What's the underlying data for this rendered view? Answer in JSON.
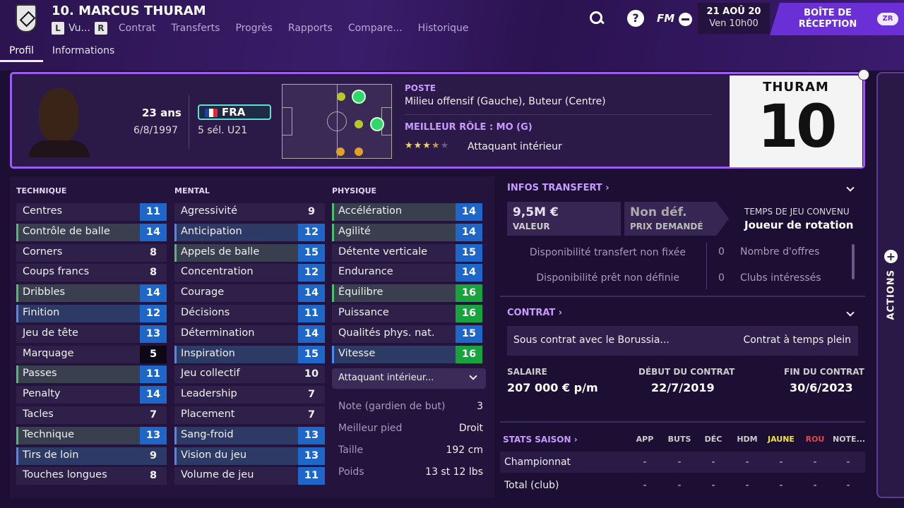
{
  "header": {
    "player_title": "10. MARCUS THURAM",
    "key_left": "L",
    "viewed": "Vu...",
    "key_right": "R",
    "nav": [
      "Contrat",
      "Transferts",
      "Progrès",
      "Rapports",
      "Compare...",
      "Historique"
    ],
    "help_glyph": "?",
    "fm_logo": "FM",
    "date": "21 AOÛ 20",
    "time": "Ven 10h00",
    "inbox": "BOÎTE DE RÉCEPTION",
    "inbox_key": "ZR"
  },
  "sub_tabs": [
    "Profil",
    "Informations"
  ],
  "card": {
    "age": "23 ans",
    "dob": "6/8/1997",
    "nation": "FRA",
    "caps": "5 sél. U21",
    "poste_label": "POSTE",
    "poste": "Milieu offensif (Gauche), Buteur (Centre)",
    "role_label": "MEILLEUR RÔLE : MO (G)",
    "role": "Attaquant intérieur",
    "stars": 3.5,
    "shirt_name": "THURAM",
    "shirt_number": "10"
  },
  "attributes": {
    "technique": {
      "title": "TECHNIQUE",
      "items": [
        {
          "name": "Centres",
          "value": "11"
        },
        {
          "name": "Contrôle de balle",
          "value": "14"
        },
        {
          "name": "Corners",
          "value": "8"
        },
        {
          "name": "Coups francs",
          "value": "8"
        },
        {
          "name": "Dribbles",
          "value": "14"
        },
        {
          "name": "Finition",
          "value": "12"
        },
        {
          "name": "Jeu de tête",
          "value": "13"
        },
        {
          "name": "Marquage",
          "value": "5"
        },
        {
          "name": "Passes",
          "value": "11"
        },
        {
          "name": "Penalty",
          "value": "14"
        },
        {
          "name": "Tacles",
          "value": "7"
        },
        {
          "name": "Technique",
          "value": "13"
        },
        {
          "name": "Tirs de loin",
          "value": "9"
        },
        {
          "name": "Touches longues",
          "value": "8"
        }
      ]
    },
    "mental": {
      "title": "MENTAL",
      "items": [
        {
          "name": "Agressivité",
          "value": "9"
        },
        {
          "name": "Anticipation",
          "value": "12"
        },
        {
          "name": "Appels de balle",
          "value": "15"
        },
        {
          "name": "Concentration",
          "value": "12"
        },
        {
          "name": "Courage",
          "value": "14"
        },
        {
          "name": "Décisions",
          "value": "11"
        },
        {
          "name": "Détermination",
          "value": "14"
        },
        {
          "name": "Inspiration",
          "value": "15"
        },
        {
          "name": "Jeu collectif",
          "value": "10"
        },
        {
          "name": "Leadership",
          "value": "7"
        },
        {
          "name": "Placement",
          "value": "7"
        },
        {
          "name": "Sang-froid",
          "value": "13"
        },
        {
          "name": "Vision du jeu",
          "value": "13"
        },
        {
          "name": "Volume de jeu",
          "value": "11"
        }
      ]
    },
    "physique": {
      "title": "PHYSIQUE",
      "items": [
        {
          "name": "Accélération",
          "value": "14"
        },
        {
          "name": "Agilité",
          "value": "14"
        },
        {
          "name": "Détente verticale",
          "value": "15"
        },
        {
          "name": "Endurance",
          "value": "14"
        },
        {
          "name": "Équilibre",
          "value": "16"
        },
        {
          "name": "Puissance",
          "value": "16"
        },
        {
          "name": "Qualités phys. nat.",
          "value": "15"
        },
        {
          "name": "Vitesse",
          "value": "16"
        }
      ]
    },
    "role_select": "Attaquant intérieur...",
    "info": [
      {
        "k": "Note (gardien de but)",
        "v": "3"
      },
      {
        "k": "Meilleur pied",
        "v": "Droit"
      },
      {
        "k": "Taille",
        "v": "192 cm"
      },
      {
        "k": "Poids",
        "v": "13 st 12 lbs"
      }
    ]
  },
  "transfer": {
    "title": "INFOS TRANSFERT",
    "value": "9,5M €",
    "value_label": "VALEUR",
    "asking": "Non déf.",
    "asking_label": "PRIX DEMANDÉ",
    "playtime_label": "TEMPS DE JEU CONVENU",
    "playtime": "Joueur de rotation",
    "transfer_avail": "Disponibilité transfert non fixée",
    "loan_avail": "Disponibilité prêt non définie",
    "offers_count": "0",
    "offers_label": "Nombre d'offres",
    "clubs_count": "0",
    "clubs_label": "Clubs intéressés"
  },
  "contract": {
    "title": "CONTRAT",
    "status": "Sous contrat avec le Borussia...",
    "type": "Contrat à temps plein",
    "salary_label": "SALAIRE",
    "salary": "207 000 € p/m",
    "start_label": "DÉBUT DU CONTRAT",
    "start": "22/7/2019",
    "end_label": "FIN DU CONTRAT",
    "end": "30/6/2023"
  },
  "stats": {
    "title": "STATS SAISON",
    "columns": [
      "APP",
      "BUTS",
      "DÉC",
      "HDM",
      "JAUNE",
      "ROU",
      "NOTE..."
    ],
    "rows": [
      {
        "label": "Championnat",
        "cells": [
          "-",
          "-",
          "-",
          "-",
          "-",
          "-",
          "-"
        ]
      },
      {
        "label": "Total (club)",
        "cells": [
          "-",
          "-",
          "-",
          "-",
          "-",
          "-",
          "-"
        ]
      }
    ]
  },
  "actions": {
    "plus": "+",
    "label": "ACTIONS"
  },
  "colors": {
    "accent": "#9c5cf0",
    "blue": "#1f66c9",
    "green": "#18a33e",
    "yellow_card": "#f2e23a",
    "red_card": "#e04848"
  }
}
